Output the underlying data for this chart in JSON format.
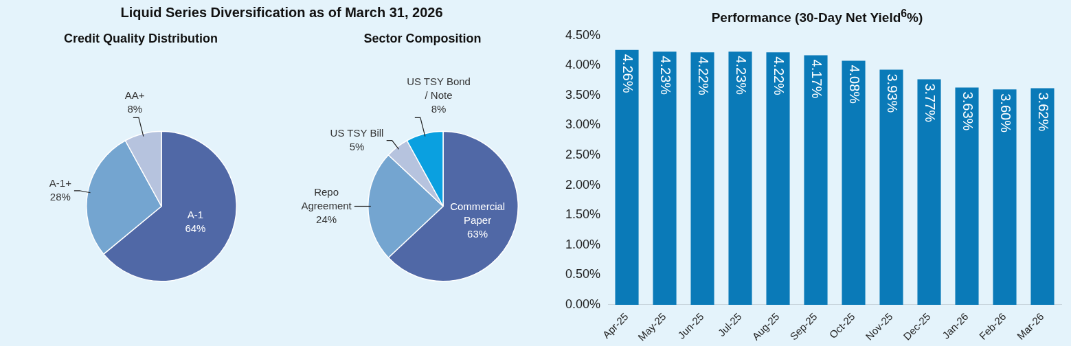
{
  "chart_data": [
    {
      "type": "other",
      "title": "Liquid Series Diversification as of March 31, 2026"
    },
    {
      "type": "pie",
      "title": "Credit Quality Distribution",
      "categories": [
        "A-1",
        "A-1+",
        "AA+"
      ],
      "values": [
        64,
        28,
        8
      ],
      "value_labels": [
        "64%",
        "28%",
        "8%"
      ],
      "colors": [
        "#5068a6",
        "#74a5d0",
        "#b6c3de"
      ],
      "legend": false
    },
    {
      "type": "pie",
      "title": "Sector Composition",
      "categories": [
        "Commercial Paper",
        "Repo Agreement",
        "US TSY Bill",
        "US TSY Bond / Note"
      ],
      "values": [
        63,
        24,
        5,
        8
      ],
      "value_labels": [
        "63%",
        "24%",
        "5%",
        "8%"
      ],
      "colors": [
        "#5068a6",
        "#74a5d0",
        "#b6c3de",
        "#0aa0e0"
      ],
      "legend": false
    },
    {
      "type": "bar",
      "title": "Performance (30-Day Net Yield$^{6}$%)",
      "categories": [
        "Apr-25",
        "May-25",
        "Jun-25",
        "Jul-25",
        "Aug-25",
        "Sep-25",
        "Oct-25",
        "Nov-25",
        "Dec-25",
        "Jan-26",
        "Feb-26",
        "Mar-26"
      ],
      "values": [
        4.26,
        4.23,
        4.22,
        4.23,
        4.22,
        4.17,
        4.08,
        3.93,
        3.77,
        3.63,
        3.6,
        3.62
      ],
      "value_labels": [
        "4.26%",
        "4.23%",
        "4.22%",
        "4.23%",
        "4.22%",
        "4.17%",
        "4.08%",
        "3.93%",
        "3.77%",
        "3.63%",
        "3.60%",
        "3.62%"
      ],
      "color": "#0a7ab8",
      "ylim": [
        0,
        4.5
      ],
      "yticks": [
        {
          "value": 0,
          "label": "0.00%"
        },
        {
          "value": 0.5,
          "label": "0.50%"
        },
        {
          "value": 1,
          "label": "1.00%"
        },
        {
          "value": 1.5,
          "label": "1.50%"
        },
        {
          "value": 2,
          "label": "2.00%"
        },
        {
          "value": 2.5,
          "label": "2.50%"
        },
        {
          "value": 3,
          "label": "3.00%"
        },
        {
          "value": 3.5,
          "label": "3.50%"
        },
        {
          "value": 4,
          "label": "4.00%"
        },
        {
          "value": 4.5,
          "label": "4.50%"
        }
      ],
      "grid": false,
      "legend": false
    }
  ]
}
